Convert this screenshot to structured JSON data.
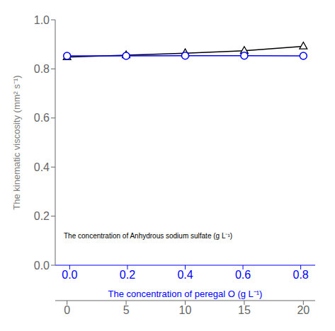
{
  "chart_data": {
    "type": "line",
    "x": [
      0,
      5,
      10,
      15,
      20
    ],
    "series": [
      {
        "color": "black",
        "marker": "triangle",
        "values": [
          0.848,
          0.856,
          0.864,
          0.874,
          0.892
        ]
      },
      {
        "color": "blue",
        "marker": "circle",
        "values": [
          0.853,
          0.853,
          0.854,
          0.854,
          0.853
        ]
      }
    ],
    "xlim": [
      -1,
      21
    ],
    "xticks": [
      0,
      5,
      10,
      15,
      20
    ],
    "x2lim": [
      -0.05,
      0.85
    ],
    "x2ticks": [
      {
        "value": 0,
        "label": "0.0"
      },
      0.2,
      0.4,
      0.6,
      0.8
    ],
    "x2label": "The concentration of peregal O (g L⁻¹)",
    "ylim": [
      0.0,
      1.0
    ],
    "yticks": [
      {
        "value": 0,
        "label": "0.0"
      },
      0.2,
      0.4,
      0.6,
      0.8,
      {
        "value": 1,
        "label": "1.0"
      }
    ],
    "ylabel": "The kinematic viscosity (mm² s⁻¹)",
    "annotations": [
      "The concentration of Anhydrous sodium sulfate (g L⁻¹)"
    ],
    "grid": false
  }
}
